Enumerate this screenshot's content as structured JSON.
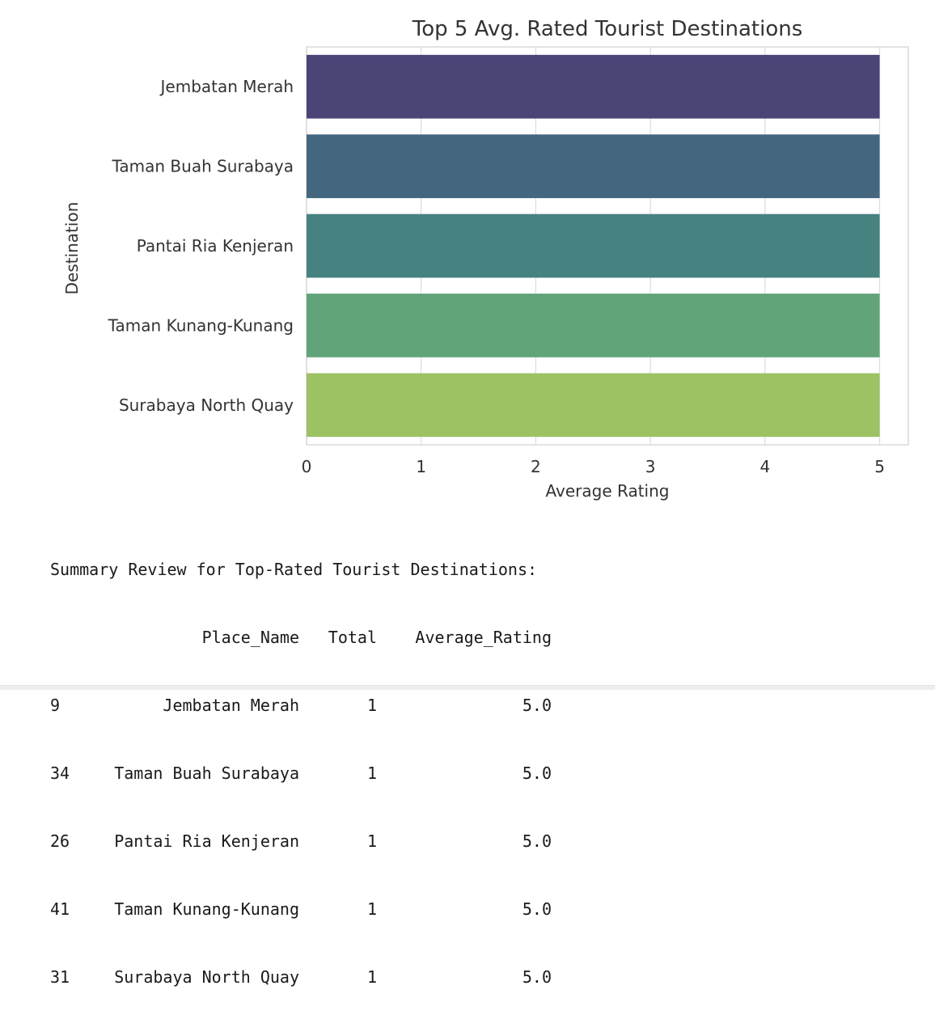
{
  "chart_data": {
    "type": "bar",
    "orientation": "horizontal",
    "title": "Top 5 Avg. Rated Tourist Destinations",
    "xlabel": "Average Rating",
    "ylabel": "Destination",
    "categories": [
      "Jembatan Merah",
      "Taman Buah Surabaya",
      "Pantai Ria Kenjeran",
      "Taman Kunang-Kunang",
      "Surabaya North Quay"
    ],
    "values": [
      5.0,
      5.0,
      5.0,
      5.0,
      5.0
    ],
    "colors": [
      "#4a4477",
      "#44677f",
      "#46827f",
      "#61a479",
      "#9dc264"
    ],
    "xlim": [
      0,
      5.25
    ],
    "xticks": [
      "0",
      "1",
      "2",
      "3",
      "4",
      "5"
    ],
    "grid": true,
    "legend": "none"
  },
  "summary": {
    "heading": "Summary Review for Top-Rated Tourist Destinations:",
    "columns": [
      "Place_Name",
      "Total",
      "Average_Rating"
    ],
    "rows": [
      {
        "index": "9",
        "place": "Jembatan Merah",
        "total": "1",
        "avg": "5.0"
      },
      {
        "index": "34",
        "place": "Taman Buah Surabaya",
        "total": "1",
        "avg": "5.0"
      },
      {
        "index": "26",
        "place": "Pantai Ria Kenjeran",
        "total": "1",
        "avg": "5.0"
      },
      {
        "index": "41",
        "place": "Taman Kunang-Kunang",
        "total": "1",
        "avg": "5.0"
      },
      {
        "index": "31",
        "place": "Surabaya North Quay",
        "total": "1",
        "avg": "5.0"
      }
    ]
  }
}
